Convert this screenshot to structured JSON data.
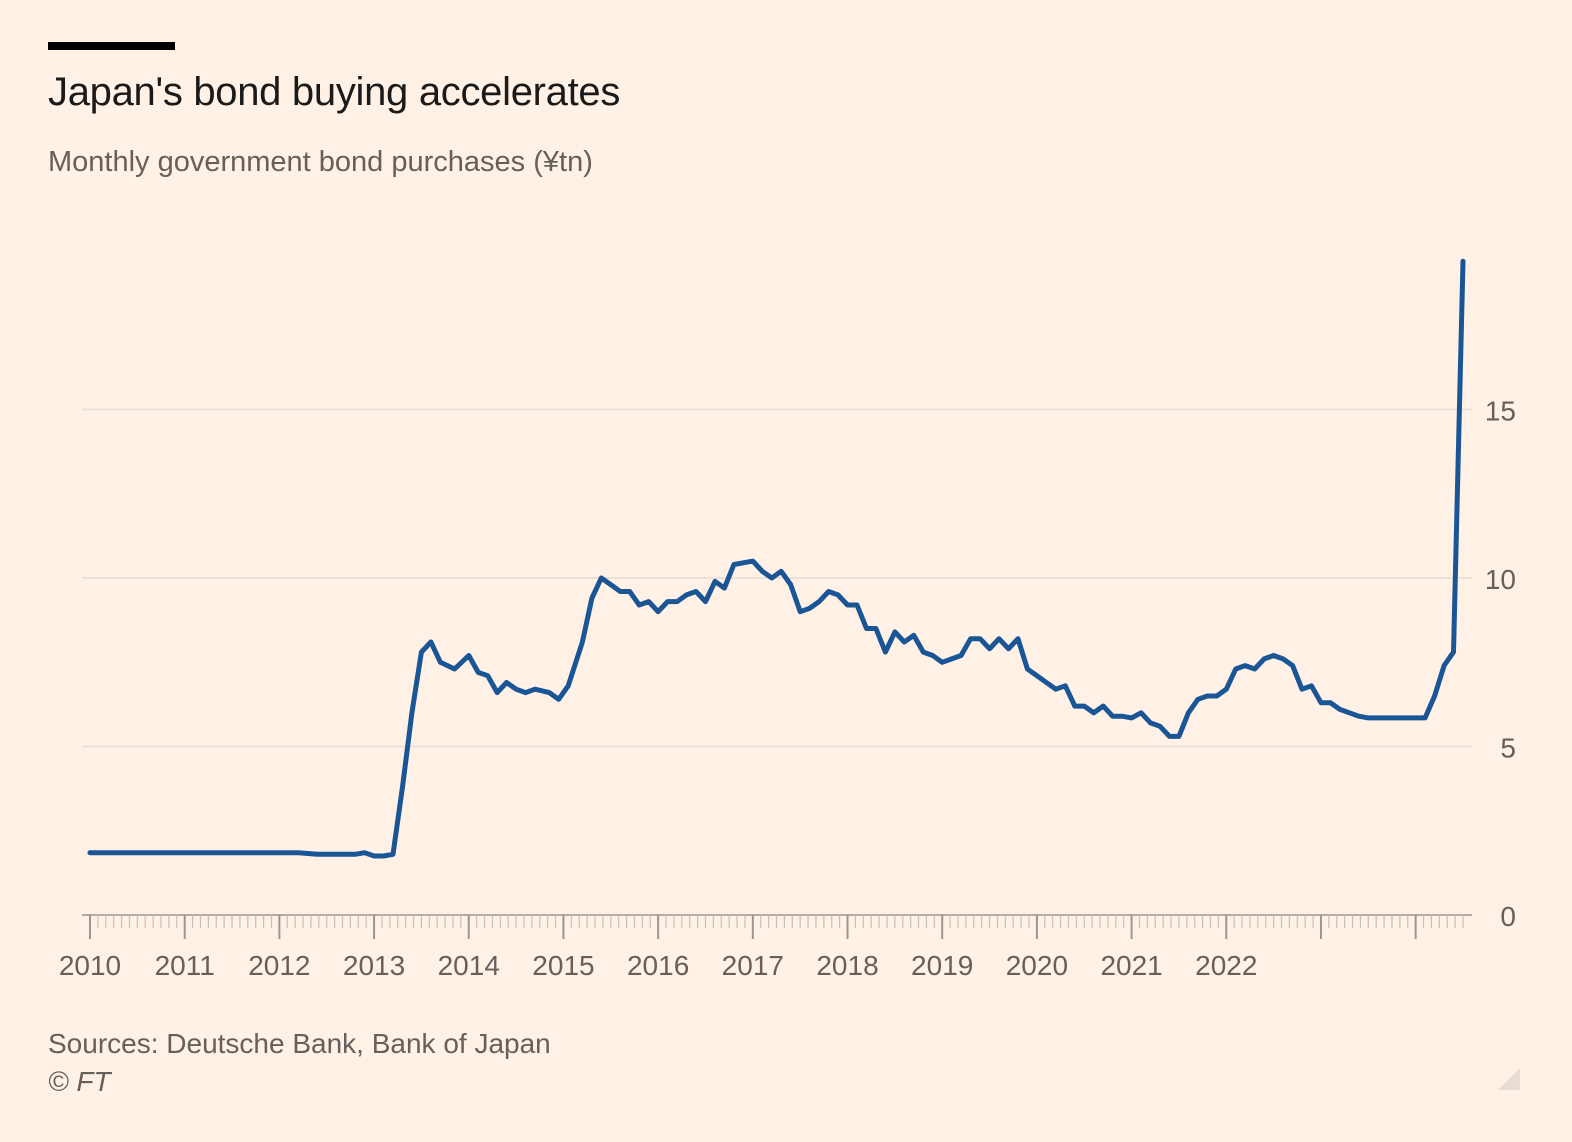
{
  "header": {
    "title": "Japan's bond buying accelerates",
    "subtitle": "Monthly government bond purchases (¥tn)"
  },
  "footer": {
    "source": "Sources: Deutsche Bank, Bank of Japan",
    "copyright": "© FT"
  },
  "colors": {
    "background": "#fff1e5",
    "line": "#1a5596",
    "grid": "#ece1d8",
    "tick_text": "#66605c"
  },
  "chart_data": {
    "type": "line",
    "title": "Japan's bond buying accelerates",
    "subtitle": "Monthly government bond purchases (¥tn)",
    "xlabel": "",
    "ylabel": "",
    "y_axis_side": "right",
    "ylim": [
      0,
      20
    ],
    "y_ticks": [
      0,
      5,
      10,
      15
    ],
    "y_tick_labels": [
      "0",
      "5",
      "10",
      "15"
    ],
    "x_ticks": [
      2010,
      2011,
      2012,
      2013,
      2014,
      2015,
      2016,
      2017,
      2018,
      2019,
      2020,
      2021,
      2022
    ],
    "x_tick_labels": [
      "2010",
      "2011",
      "2012",
      "2013",
      "2014",
      "2015",
      "2016",
      "2017",
      "2018",
      "2019",
      "2020",
      "2021",
      "2022"
    ],
    "grid": true,
    "legend": "none",
    "series": [
      {
        "color": "#1a5596",
        "points": [
          [
            2010.0,
            1.85
          ],
          [
            2010.2,
            1.85
          ],
          [
            2010.4,
            1.85
          ],
          [
            2010.6,
            1.85
          ],
          [
            2010.8,
            1.85
          ],
          [
            2011.0,
            1.85
          ],
          [
            2011.2,
            1.85
          ],
          [
            2011.4,
            1.85
          ],
          [
            2011.6,
            1.85
          ],
          [
            2011.8,
            1.85
          ],
          [
            2012.0,
            1.85
          ],
          [
            2012.2,
            1.85
          ],
          [
            2012.4,
            1.8
          ],
          [
            2012.6,
            1.8
          ],
          [
            2012.8,
            1.8
          ],
          [
            2012.9,
            1.85
          ],
          [
            2013.0,
            1.75
          ],
          [
            2013.1,
            1.75
          ],
          [
            2013.2,
            1.8
          ],
          [
            2013.3,
            3.8
          ],
          [
            2013.4,
            6.0
          ],
          [
            2013.5,
            7.8
          ],
          [
            2013.6,
            8.1
          ],
          [
            2013.7,
            7.5
          ],
          [
            2013.85,
            7.3
          ],
          [
            2014.0,
            7.7
          ],
          [
            2014.1,
            7.2
          ],
          [
            2014.2,
            7.1
          ],
          [
            2014.3,
            6.6
          ],
          [
            2014.4,
            6.9
          ],
          [
            2014.5,
            6.7
          ],
          [
            2014.6,
            6.6
          ],
          [
            2014.7,
            6.7
          ],
          [
            2014.85,
            6.6
          ],
          [
            2014.95,
            6.4
          ],
          [
            2015.05,
            6.8
          ],
          [
            2015.2,
            8.1
          ],
          [
            2015.3,
            9.4
          ],
          [
            2015.4,
            10.0
          ],
          [
            2015.5,
            9.8
          ],
          [
            2015.6,
            9.6
          ],
          [
            2015.7,
            9.6
          ],
          [
            2015.8,
            9.2
          ],
          [
            2015.9,
            9.3
          ],
          [
            2016.0,
            9.0
          ],
          [
            2016.1,
            9.3
          ],
          [
            2016.2,
            9.3
          ],
          [
            2016.3,
            9.5
          ],
          [
            2016.4,
            9.6
          ],
          [
            2016.5,
            9.3
          ],
          [
            2016.6,
            9.9
          ],
          [
            2016.7,
            9.7
          ],
          [
            2016.8,
            10.4
          ],
          [
            2016.9,
            10.45
          ],
          [
            2017.0,
            10.5
          ],
          [
            2017.1,
            10.2
          ],
          [
            2017.2,
            10.0
          ],
          [
            2017.3,
            10.2
          ],
          [
            2017.4,
            9.8
          ],
          [
            2017.5,
            9.0
          ],
          [
            2017.6,
            9.1
          ],
          [
            2017.7,
            9.3
          ],
          [
            2017.8,
            9.6
          ],
          [
            2017.9,
            9.5
          ],
          [
            2018.0,
            9.2
          ],
          [
            2018.1,
            9.2
          ],
          [
            2018.2,
            8.5
          ],
          [
            2018.3,
            8.5
          ],
          [
            2018.4,
            7.8
          ],
          [
            2018.5,
            8.4
          ],
          [
            2018.6,
            8.1
          ],
          [
            2018.7,
            8.3
          ],
          [
            2018.8,
            7.8
          ],
          [
            2018.9,
            7.7
          ],
          [
            2019.0,
            7.5
          ],
          [
            2019.1,
            7.6
          ],
          [
            2019.2,
            7.7
          ],
          [
            2019.3,
            8.2
          ],
          [
            2019.4,
            8.2
          ],
          [
            2019.5,
            7.9
          ],
          [
            2019.6,
            8.2
          ],
          [
            2019.7,
            7.9
          ],
          [
            2019.8,
            8.2
          ],
          [
            2019.9,
            7.3
          ],
          [
            2020.0,
            7.1
          ],
          [
            2020.1,
            6.9
          ],
          [
            2020.2,
            6.7
          ],
          [
            2020.3,
            6.8
          ],
          [
            2020.4,
            6.2
          ],
          [
            2020.5,
            6.2
          ],
          [
            2020.6,
            6.0
          ],
          [
            2020.7,
            6.2
          ],
          [
            2020.8,
            5.9
          ],
          [
            2020.9,
            5.9
          ],
          [
            2021.0,
            5.85
          ],
          [
            2021.1,
            6.0
          ],
          [
            2021.2,
            5.7
          ],
          [
            2021.3,
            5.6
          ],
          [
            2021.4,
            5.3
          ],
          [
            2021.5,
            5.3
          ],
          [
            2021.6,
            6.0
          ],
          [
            2021.7,
            6.4
          ],
          [
            2021.8,
            6.5
          ],
          [
            2021.9,
            6.5
          ],
          [
            2022.0,
            6.7
          ],
          [
            2022.1,
            7.3
          ],
          [
            2022.2,
            7.4
          ],
          [
            2022.3,
            7.3
          ],
          [
            2022.4,
            7.6
          ],
          [
            2022.5,
            7.7
          ],
          [
            2022.6,
            7.6
          ],
          [
            2022.7,
            7.4
          ],
          [
            2022.8,
            6.7
          ],
          [
            2022.9,
            6.8
          ],
          [
            2023.0,
            6.3
          ],
          [
            2023.1,
            6.3
          ],
          [
            2023.2,
            6.1
          ],
          [
            2023.3,
            6.0
          ],
          [
            2023.4,
            5.9
          ],
          [
            2023.5,
            5.85
          ],
          [
            2023.7,
            5.85
          ],
          [
            2023.9,
            5.85
          ],
          [
            2024.1,
            5.85
          ],
          [
            2024.2,
            6.5
          ],
          [
            2024.3,
            7.4
          ],
          [
            2024.4,
            7.8
          ],
          [
            2024.5,
            19.4
          ]
        ]
      }
    ]
  }
}
